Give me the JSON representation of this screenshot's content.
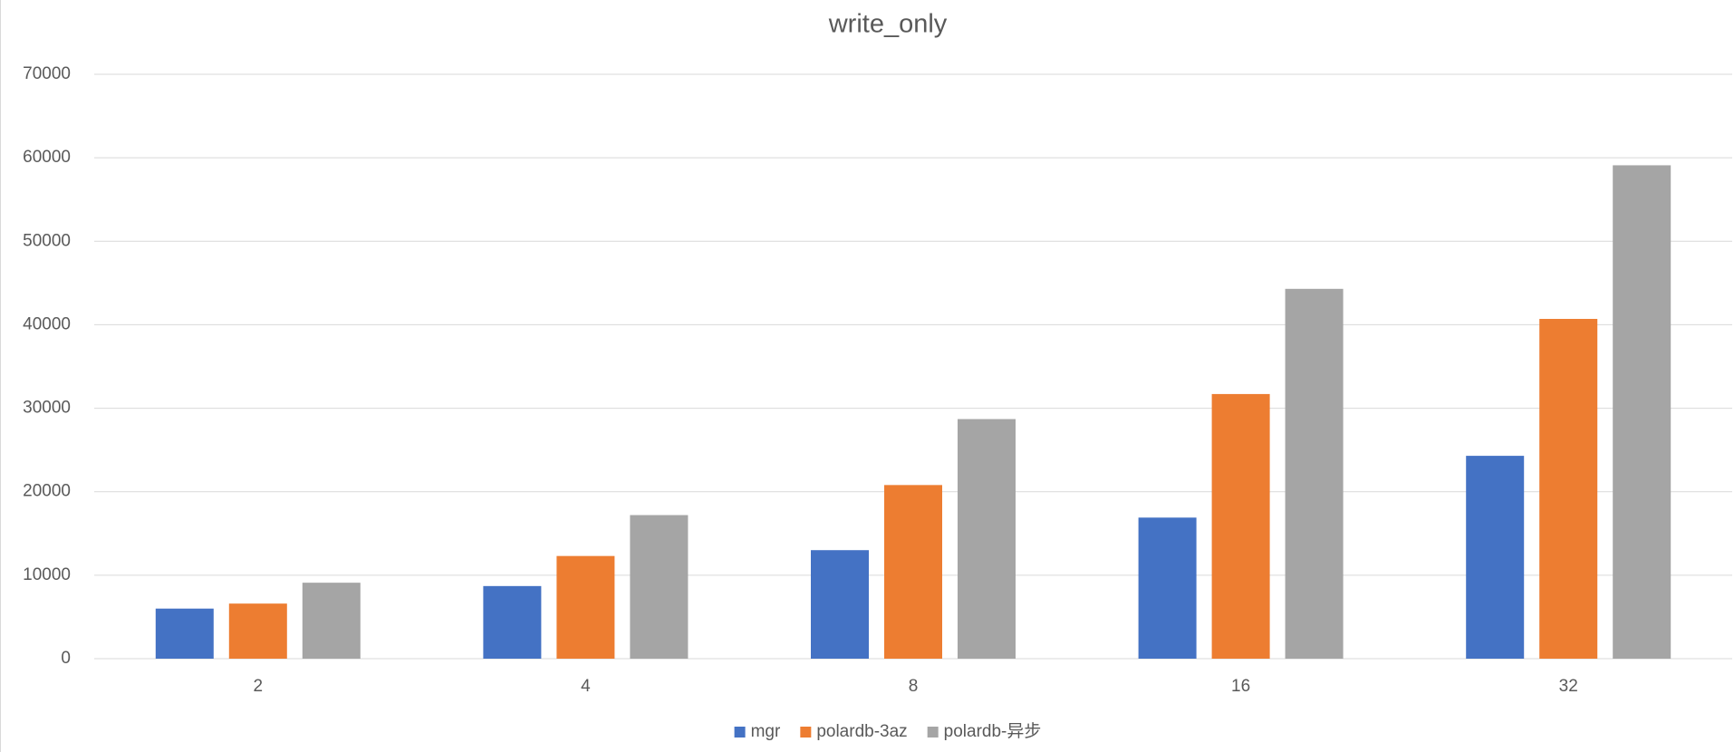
{
  "chart_data": {
    "type": "bar",
    "title": "write_only",
    "categories": [
      "2",
      "4",
      "8",
      "16",
      "32"
    ],
    "series": [
      {
        "name": "mgr",
        "color": "#4472c4",
        "values": [
          6000,
          8700,
          13000,
          16900,
          24300
        ]
      },
      {
        "name": "polardb-3az",
        "color": "#ed7d31",
        "values": [
          6600,
          12300,
          20800,
          31700,
          40700
        ]
      },
      {
        "name": "polardb-异步",
        "color": "#a5a5a5",
        "values": [
          9100,
          17200,
          28700,
          44300,
          59100
        ]
      }
    ],
    "ylim": [
      0,
      70000
    ],
    "yticks": [
      0,
      10000,
      20000,
      30000,
      40000,
      50000,
      60000,
      70000
    ],
    "grid": true,
    "legend": "bottom"
  }
}
